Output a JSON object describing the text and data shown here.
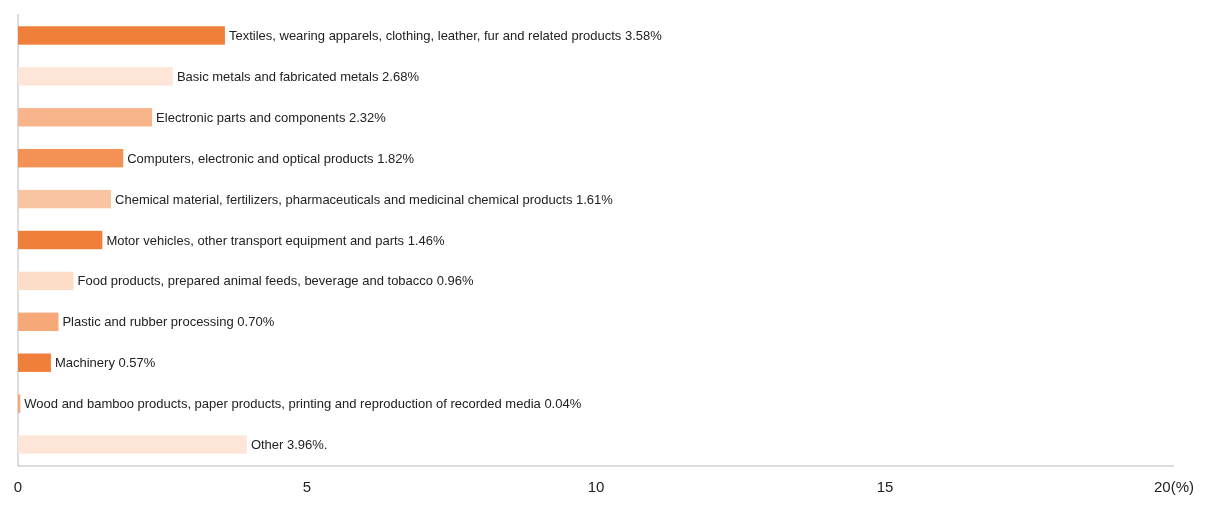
{
  "chart_data": {
    "type": "bar",
    "orientation": "horizontal",
    "categories": [
      "Textiles, wearing apparels, clothing, leather, fur and related products 3.58%",
      "Basic metals and fabricated metals 2.68%",
      "Electronic parts and components 2.32%",
      "Computers, electronic and optical products 1.82%",
      "Chemical material, fertilizers, pharmaceuticals and medicinal chemical products 1.61%",
      "Motor vehicles, other transport equipment and parts 1.46%",
      "Food products, prepared animal feeds, beverage and tobacco 0.96%",
      "Plastic and rubber processing 0.70%",
      "Machinery 0.57%",
      "Wood and bamboo products, paper products, printing and reproduction of recorded media 0.04%",
      "Other 3.96%."
    ],
    "values": [
      3.58,
      2.68,
      2.32,
      1.82,
      1.61,
      1.46,
      0.96,
      0.7,
      0.57,
      0.04,
      3.96
    ],
    "colors": [
      "#f07f3c",
      "#fde6d8",
      "#f8b48a",
      "#f39254",
      "#f8c4a2",
      "#f07f3c",
      "#fddcc8",
      "#f6a878",
      "#f07f3c",
      "#f6a878",
      "#fde6d8"
    ],
    "xlim": [
      0,
      20
    ],
    "xticks": [
      0,
      5,
      10,
      15,
      {
        "value": 20,
        "label": "20(%)"
      }
    ],
    "grid": false
  }
}
